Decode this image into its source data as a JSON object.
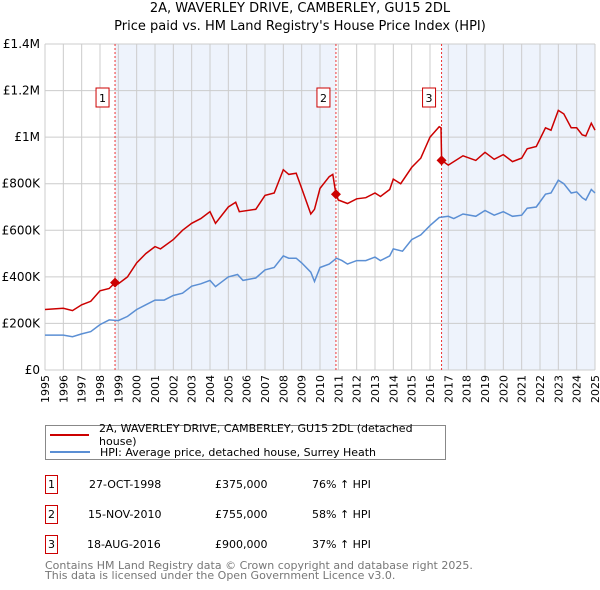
{
  "title": "2A, WAVERLEY DRIVE, CAMBERLEY, GU15 2DL",
  "subtitle": "Price paid vs. HM Land Registry's House Price Index (HPI)",
  "chart_data": {
    "type": "line",
    "title": "2A, WAVERLEY DRIVE, CAMBERLEY, GU15 2DL — Price paid vs. HM Land Registry's House Price Index (HPI)",
    "xlim": [
      1995,
      2025
    ],
    "ylim": [
      0,
      1400000
    ],
    "x_ticks": [
      "1995",
      "1996",
      "1997",
      "1998",
      "1999",
      "2000",
      "2001",
      "2002",
      "2003",
      "2004",
      "2005",
      "2006",
      "2007",
      "2008",
      "2009",
      "2010",
      "2011",
      "2012",
      "2013",
      "2014",
      "2015",
      "2016",
      "2017",
      "2018",
      "2019",
      "2020",
      "2021",
      "2022",
      "2023",
      "2024",
      "2025"
    ],
    "y_ticks": [
      {
        "v": 0,
        "l": "£0"
      },
      {
        "v": 200000,
        "l": "£200K"
      },
      {
        "v": 400000,
        "l": "£400K"
      },
      {
        "v": 600000,
        "l": "£600K"
      },
      {
        "v": 800000,
        "l": "£800K"
      },
      {
        "v": 1000000,
        "l": "£1M"
      },
      {
        "v": 1200000,
        "l": "£1.2M"
      },
      {
        "v": 1400000,
        "l": "£1.4M"
      }
    ],
    "grid": true,
    "series": [
      {
        "name": "2A, WAVERLEY DRIVE, CAMBERLEY, GU15 2DL (detached house)",
        "color": "#cc0000",
        "points": [
          [
            1995,
            260
          ],
          [
            1996,
            265
          ],
          [
            1996.5,
            255
          ],
          [
            1997,
            280
          ],
          [
            1997.5,
            295
          ],
          [
            1998,
            340
          ],
          [
            1998.5,
            350
          ],
          [
            1998.82,
            375
          ],
          [
            1999,
            370
          ],
          [
            1999.5,
            400
          ],
          [
            2000,
            460
          ],
          [
            2000.5,
            500
          ],
          [
            2001,
            530
          ],
          [
            2001.3,
            520
          ],
          [
            2002,
            560
          ],
          [
            2002.5,
            600
          ],
          [
            2003,
            630
          ],
          [
            2003.5,
            650
          ],
          [
            2004,
            680
          ],
          [
            2004.3,
            630
          ],
          [
            2005,
            700
          ],
          [
            2005.4,
            720
          ],
          [
            2005.6,
            680
          ],
          [
            2006.5,
            690
          ],
          [
            2007,
            750
          ],
          [
            2007.5,
            760
          ],
          [
            2008,
            860
          ],
          [
            2008.3,
            840
          ],
          [
            2008.7,
            845
          ],
          [
            2009,
            780
          ],
          [
            2009.5,
            670
          ],
          [
            2009.7,
            690
          ],
          [
            2010,
            780
          ],
          [
            2010.5,
            830
          ],
          [
            2010.7,
            840
          ],
          [
            2010.87,
            755
          ],
          [
            2011,
            730
          ],
          [
            2011.5,
            715
          ],
          [
            2012,
            735
          ],
          [
            2012.5,
            740
          ],
          [
            2013,
            760
          ],
          [
            2013.3,
            745
          ],
          [
            2013.8,
            775
          ],
          [
            2014,
            820
          ],
          [
            2014.4,
            800
          ],
          [
            2015,
            870
          ],
          [
            2015.5,
            910
          ],
          [
            2016,
            1000
          ],
          [
            2016.5,
            1045
          ],
          [
            2016.6,
            1040
          ],
          [
            2016.63,
            900
          ],
          [
            2017,
            880
          ],
          [
            2017.8,
            920
          ],
          [
            2018.5,
            900
          ],
          [
            2019,
            935
          ],
          [
            2019.5,
            905
          ],
          [
            2020,
            925
          ],
          [
            2020.5,
            895
          ],
          [
            2021,
            910
          ],
          [
            2021.3,
            950
          ],
          [
            2021.8,
            960
          ],
          [
            2022.3,
            1040
          ],
          [
            2022.6,
            1030
          ],
          [
            2023,
            1115
          ],
          [
            2023.3,
            1100
          ],
          [
            2023.7,
            1040
          ],
          [
            2024,
            1040
          ],
          [
            2024.3,
            1010
          ],
          [
            2024.5,
            1005
          ],
          [
            2024.8,
            1060
          ],
          [
            2025,
            1030
          ]
        ]
      },
      {
        "name": "HPI: Average price, detached house, Surrey Heath",
        "color": "#5b8fd4",
        "points": [
          [
            1995,
            150
          ],
          [
            1996,
            150
          ],
          [
            1996.5,
            143
          ],
          [
            1997,
            155
          ],
          [
            1997.5,
            165
          ],
          [
            1998,
            195
          ],
          [
            1998.5,
            215
          ],
          [
            1999,
            212
          ],
          [
            1999.5,
            230
          ],
          [
            2000,
            260
          ],
          [
            2000.5,
            280
          ],
          [
            2001,
            300
          ],
          [
            2001.5,
            300
          ],
          [
            2002,
            320
          ],
          [
            2002.5,
            330
          ],
          [
            2003,
            360
          ],
          [
            2003.5,
            370
          ],
          [
            2004,
            385
          ],
          [
            2004.3,
            358
          ],
          [
            2004.5,
            370
          ],
          [
            2005,
            400
          ],
          [
            2005.5,
            410
          ],
          [
            2005.8,
            385
          ],
          [
            2006.5,
            395
          ],
          [
            2007,
            430
          ],
          [
            2007.5,
            440
          ],
          [
            2008,
            490
          ],
          [
            2008.3,
            480
          ],
          [
            2008.7,
            480
          ],
          [
            2009,
            460
          ],
          [
            2009.5,
            420
          ],
          [
            2009.7,
            380
          ],
          [
            2010,
            440
          ],
          [
            2010.5,
            455
          ],
          [
            2010.9,
            480
          ],
          [
            2011.2,
            470
          ],
          [
            2011.5,
            455
          ],
          [
            2012,
            470
          ],
          [
            2012.5,
            470
          ],
          [
            2013,
            485
          ],
          [
            2013.3,
            470
          ],
          [
            2013.8,
            490
          ],
          [
            2014,
            520
          ],
          [
            2014.5,
            510
          ],
          [
            2015,
            560
          ],
          [
            2015.5,
            580
          ],
          [
            2016,
            620
          ],
          [
            2016.5,
            655
          ],
          [
            2017,
            660
          ],
          [
            2017.3,
            650
          ],
          [
            2017.8,
            670
          ],
          [
            2018.5,
            660
          ],
          [
            2019,
            685
          ],
          [
            2019.5,
            665
          ],
          [
            2020,
            680
          ],
          [
            2020.5,
            660
          ],
          [
            2021,
            665
          ],
          [
            2021.3,
            695
          ],
          [
            2021.8,
            700
          ],
          [
            2022.3,
            755
          ],
          [
            2022.6,
            760
          ],
          [
            2023,
            815
          ],
          [
            2023.3,
            800
          ],
          [
            2023.7,
            760
          ],
          [
            2024,
            765
          ],
          [
            2024.3,
            740
          ],
          [
            2024.5,
            730
          ],
          [
            2024.8,
            775
          ],
          [
            2025,
            760
          ]
        ]
      }
    ],
    "y_units": "thousands GBP (points)",
    "sales": [
      {
        "label": "1",
        "x": 1998.82,
        "value": 375000,
        "date": "27-OCT-1998",
        "price": "£375,000",
        "hpi": "76% ↑ HPI"
      },
      {
        "label": "2",
        "x": 2010.87,
        "value": 755000,
        "date": "15-NOV-2010",
        "price": "£755,000",
        "hpi": "58% ↑ HPI"
      },
      {
        "label": "3",
        "x": 2016.63,
        "value": 900000,
        "date": "18-AUG-2016",
        "price": "£900,000",
        "hpi": "37% ↑ HPI"
      }
    ],
    "legend_placement": "below"
  },
  "legend": {
    "property": "2A, WAVERLEY DRIVE, CAMBERLEY, GU15 2DL (detached house)",
    "hpi": "HPI: Average price, detached house, Surrey Heath"
  },
  "footer": {
    "line1": "Contains HM Land Registry data © Crown copyright and database right 2025.",
    "line2": "This data is licensed under the Open Government Licence v3.0."
  }
}
